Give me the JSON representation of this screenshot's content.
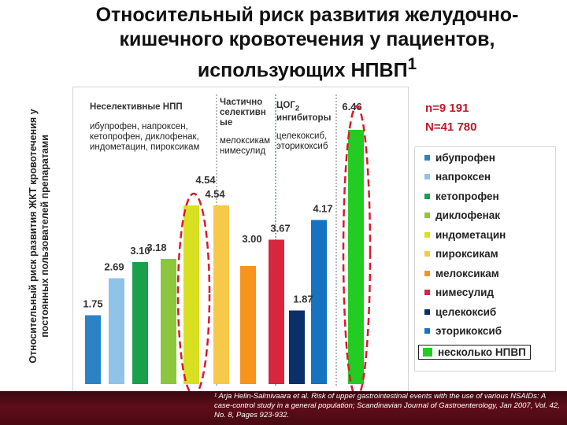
{
  "slide": {
    "title": "Относительный риск развития желудочно-кишечного кровотечения у пациентов, использующих НПВП",
    "title_superscript": "1",
    "y_axis_label": "Относительный риск развития ЖКТ кровотечения у постоянных пользователей препаратами"
  },
  "groups": {
    "nonselective_title": "Неселективные НПП",
    "nonselective_members": "ибупрофен, напроксен, кетопрофен, диклофенак, индометацин, пироксикам",
    "partial_title": "Частично селективн ые",
    "partial_members": "мелоксикам нимесулид",
    "cox2_title": "ЦОГ",
    "cox2_sub": "2",
    "cox2_title_rest": " ингибиторы",
    "cox2_members": "целекоксиб, эторикоксиб"
  },
  "stats": {
    "n_small": "n=9 191",
    "n_large": "N=41 780"
  },
  "chart_data": {
    "type": "bar",
    "ylabel": "Относительный риск развития ЖКТ кровотечения у постоянных пользователей препаратами",
    "ylim": [
      0,
      7
    ],
    "grid": false,
    "legend_position": "right",
    "bars": [
      {
        "name": "ибупрофен",
        "value": 1.75,
        "label": "1.75",
        "color": "#2b83c6"
      },
      {
        "name": "напроксен",
        "value": 2.69,
        "label": "2.69",
        "color": "#8fc3ea"
      },
      {
        "name": "кетопрофен",
        "value": 3.1,
        "label": "3.10",
        "color": "#1aa04a"
      },
      {
        "name": "диклофенак",
        "value": 3.18,
        "label": "3.18",
        "color": "#8cc63e"
      },
      {
        "name": "индометацин",
        "value": 4.54,
        "label": "4.54",
        "color": "#d9e021"
      },
      {
        "name": "пироксикам",
        "value": 4.54,
        "label": "4.54",
        "color": "#f6c94a"
      },
      {
        "name": "мелоксикам",
        "value": 3.0,
        "label": "3.00",
        "color": "#f7941d"
      },
      {
        "name": "нимесулид",
        "value": 3.67,
        "label": "3.67",
        "color": "#d7263d"
      },
      {
        "name": "целекоксиб",
        "value": 1.87,
        "label": "1.87",
        "color": "#0b2f6b"
      },
      {
        "name": "эторикоксиб",
        "value": 4.17,
        "label": "4.17",
        "color": "#1673c2"
      },
      {
        "name": "несколько НПВП",
        "value": 6.46,
        "label": "6.46",
        "color": "#22cc22"
      }
    ]
  },
  "legend": {
    "items": [
      {
        "label": "ибупрофен",
        "color": "#2b83c6"
      },
      {
        "label": "напроксен",
        "color": "#8fc3ea"
      },
      {
        "label": "кетопрофен",
        "color": "#1aa04a"
      },
      {
        "label": "диклофенак",
        "color": "#8cc63e"
      },
      {
        "label": "индометацин",
        "color": "#d9e021"
      },
      {
        "label": "пироксикам",
        "color": "#f6c94a"
      },
      {
        "label": "мелоксикам",
        "color": "#f7941d"
      },
      {
        "label": "нимесулид",
        "color": "#d7263d"
      },
      {
        "label": "целекоксиб",
        "color": "#0b2f6b"
      },
      {
        "label": "эторикоксиб",
        "color": "#1673c2"
      },
      {
        "label": "несколько НПВП",
        "color": "#22cc22"
      }
    ]
  },
  "footnote": "¹ Arja Helin-Salmivaara et al. Risk of upper gastrointestinal events with the use of various NSAIDs: A case-control study in a general population; Scandinavian Journal of Gastroenterology, Jan 2007, Vol. 42, No. 8, Pages 923-932."
}
